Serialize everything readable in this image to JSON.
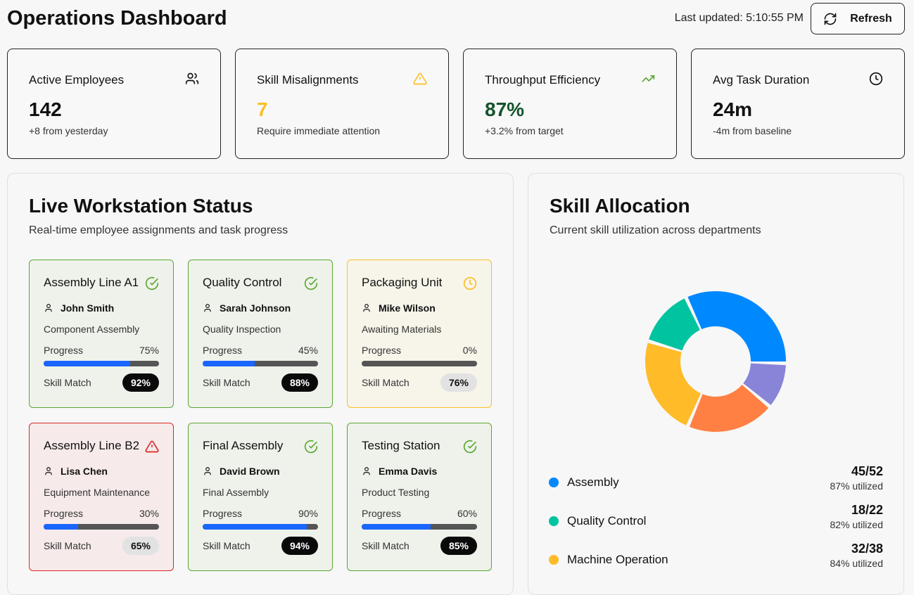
{
  "header": {
    "title": "Operations Dashboard",
    "last_updated": "Last updated: 5:10:55 PM",
    "refresh_label": "Refresh"
  },
  "stats": [
    {
      "label": "Active Employees",
      "value": "142",
      "sub": "+8 from yesterday",
      "icon": "users-icon",
      "color": "#111111"
    },
    {
      "label": "Skill Misalignments",
      "value": "7",
      "sub": "Require immediate attention",
      "icon": "alert-triangle-icon",
      "color": "#fbbf24"
    },
    {
      "label": "Throughput Efficiency",
      "value": "87%",
      "sub": "+3.2% from target",
      "icon": "trending-up-icon",
      "color": "#14532d"
    },
    {
      "label": "Avg Task Duration",
      "value": "24m",
      "sub": "-4m from baseline",
      "icon": "clock-icon",
      "color": "#111111"
    }
  ],
  "workstations": {
    "title": "Live Workstation Status",
    "description": "Real-time employee assignments and task progress",
    "progress_label": "Progress",
    "skill_label": "Skill Match",
    "items": [
      {
        "name": "Assembly Line A1",
        "status": "ok",
        "employee": "John Smith",
        "task": "Component Assembly",
        "progress": 75,
        "progress_text": "75%",
        "skill": "92%",
        "skill_high": true
      },
      {
        "name": "Quality Control",
        "status": "ok",
        "employee": "Sarah Johnson",
        "task": "Quality Inspection",
        "progress": 45,
        "progress_text": "45%",
        "skill": "88%",
        "skill_high": true
      },
      {
        "name": "Packaging Unit",
        "status": "warn",
        "employee": "Mike Wilson",
        "task": "Awaiting Materials",
        "progress": 0,
        "progress_text": "0%",
        "skill": "76%",
        "skill_high": false
      },
      {
        "name": "Assembly Line B2",
        "status": "err",
        "employee": "Lisa Chen",
        "task": "Equipment Maintenance",
        "progress": 30,
        "progress_text": "30%",
        "skill": "65%",
        "skill_high": false
      },
      {
        "name": "Final Assembly",
        "status": "ok",
        "employee": "David Brown",
        "task": "Final Assembly",
        "progress": 90,
        "progress_text": "90%",
        "skill": "94%",
        "skill_high": true
      },
      {
        "name": "Testing Station",
        "status": "ok",
        "employee": "Emma Davis",
        "task": "Product Testing",
        "progress": 60,
        "progress_text": "60%",
        "skill": "85%",
        "skill_high": true
      }
    ]
  },
  "skills": {
    "title": "Skill Allocation",
    "description": "Current skill utilization across departments",
    "legend": [
      {
        "name": "Assembly",
        "count": "45/52",
        "utilized": "87% utilized",
        "color": "#0088fe"
      },
      {
        "name": "Quality Control",
        "count": "18/22",
        "utilized": "82% utilized",
        "color": "#00c49f"
      },
      {
        "name": "Machine Operation",
        "count": "32/38",
        "utilized": "84% utilized",
        "color": "#ffbb28"
      }
    ]
  },
  "chart_data": {
    "type": "pie",
    "donut": true,
    "series": [
      {
        "name": "Assembly",
        "value": 45,
        "color": "#0088fe"
      },
      {
        "name": "Quality Control",
        "value": 18,
        "color": "#00c49f"
      },
      {
        "name": "Machine Operation",
        "value": 32,
        "color": "#ffbb28"
      },
      {
        "value": 28,
        "color": "#ff8042"
      },
      {
        "value": 14,
        "color": "#8884d8"
      }
    ]
  }
}
